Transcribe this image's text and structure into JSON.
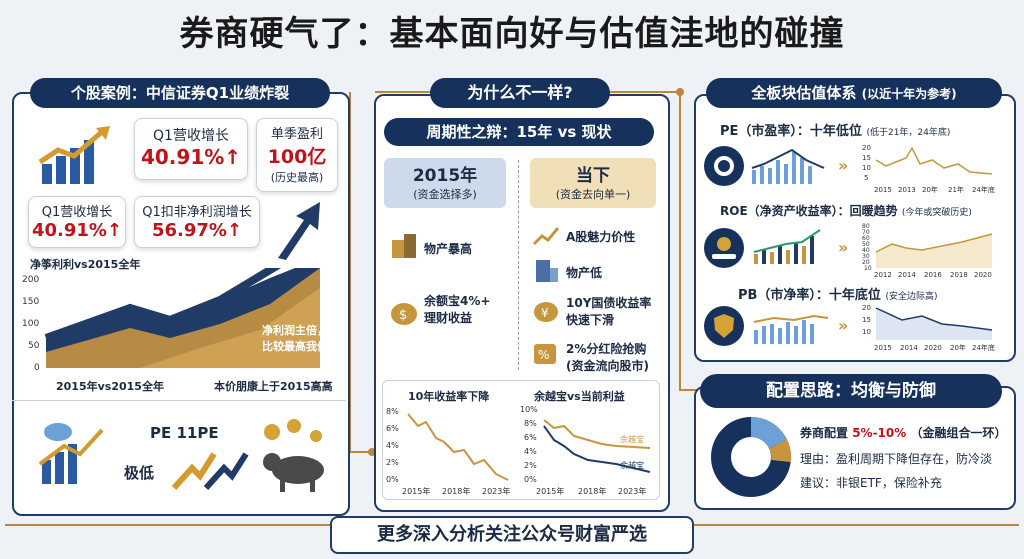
{
  "title": "券商硬气了：基本面向好与估值洼地的碰撞",
  "left": {
    "header": "个股案例：中信证券Q1业绩炸裂",
    "card1_title": "Q1营收增长",
    "card1_value": "40.91%↑",
    "card2_title": "单季盈利",
    "card2_value": "100亿",
    "card2_note": "(历史最高)",
    "card3_title": "Q1营收增长",
    "card3_value": "40.91%↑",
    "card4_title": "Q1扣非净利润增长",
    "card4_value": "56.97%↑",
    "chart_label": "净筝利利vs2015全年",
    "y_ticks": [
      "200",
      "150",
      "100",
      "50",
      "0"
    ],
    "x_left": "2015年vs2015全年",
    "x_right": "本价朋康上于2015高高",
    "annotation_line1": "净利润主倍，",
    "annotation_line2": "比较最高我值",
    "pe_label": "PE 11PE",
    "low_label": "极低"
  },
  "middle": {
    "header": "为什么不一样?",
    "sub_header": "周期性之辩：15年 vs 现状",
    "col1_title": "2015年",
    "col1_sub": "(资金选择多)",
    "col2_title": "当下",
    "col2_sub": "(资金去向单一)",
    "col1_items": [
      "物产暴高",
      "余额宝4%+\n理财收益"
    ],
    "col2_items": [
      "A股魅力价性",
      "物产低",
      "10Y国债收益率\n快速下滑",
      "2%分红险抢购\n(资金流向股市)"
    ],
    "chart1_title": "10年收益率下降",
    "chart1_y": [
      "8%",
      "6%",
      "4%",
      "2%",
      "0%"
    ],
    "chart1_x": [
      "2015年",
      "2018年",
      "2023年"
    ],
    "chart2_title": "余越宝vs当前利益",
    "chart2_y": [
      "10%",
      "8%",
      "6%",
      "4%",
      "2%",
      "0%"
    ],
    "chart2_x": [
      "2015年",
      "2018年",
      "2023年"
    ],
    "chart2_series": [
      "余越宝",
      "余越宝"
    ]
  },
  "right": {
    "header": "全板块估值体系",
    "header_note": "(以近十年为参考)",
    "pe_title": "PE（市盈率）：十年低位",
    "pe_note": "(低于21年，24年底)",
    "pe_x": [
      "2015",
      "2013",
      "20年",
      "21年",
      "24年底"
    ],
    "pe_y": [
      "20",
      "15",
      "10",
      "5"
    ],
    "roe_title": "ROE（净资产收益率）：回暖趋势",
    "roe_note": "(今年或突破历史)",
    "roe_x": [
      "2012",
      "2014",
      "2016",
      "2018",
      "2020"
    ],
    "roe_y": [
      "80",
      "70",
      "60",
      "50",
      "40",
      "30",
      "20",
      "10"
    ],
    "pb_title": "PB（市净率）：十年底位",
    "pb_note": "(安全边际高)",
    "pb_x": [
      "2015",
      "2014",
      "2020",
      "20年",
      "24年底"
    ],
    "pb_y": [
      "20",
      "15",
      "10"
    ],
    "alloc_header": "配置思路：均衡与防御",
    "alloc_line1_a": "券商配置",
    "alloc_line1_b": "5%-10%",
    "alloc_line1_c": "（金融组合一环）",
    "alloc_line2": "理由：盈利周期下降但存在，防冷淡",
    "alloc_line3": "建议：非银ETF，保险补充"
  },
  "footer": "更多深入分析关注公众号财富严选",
  "colors": {
    "navy": "#16325c",
    "gold": "#c8953f",
    "red": "#c0141b"
  }
}
